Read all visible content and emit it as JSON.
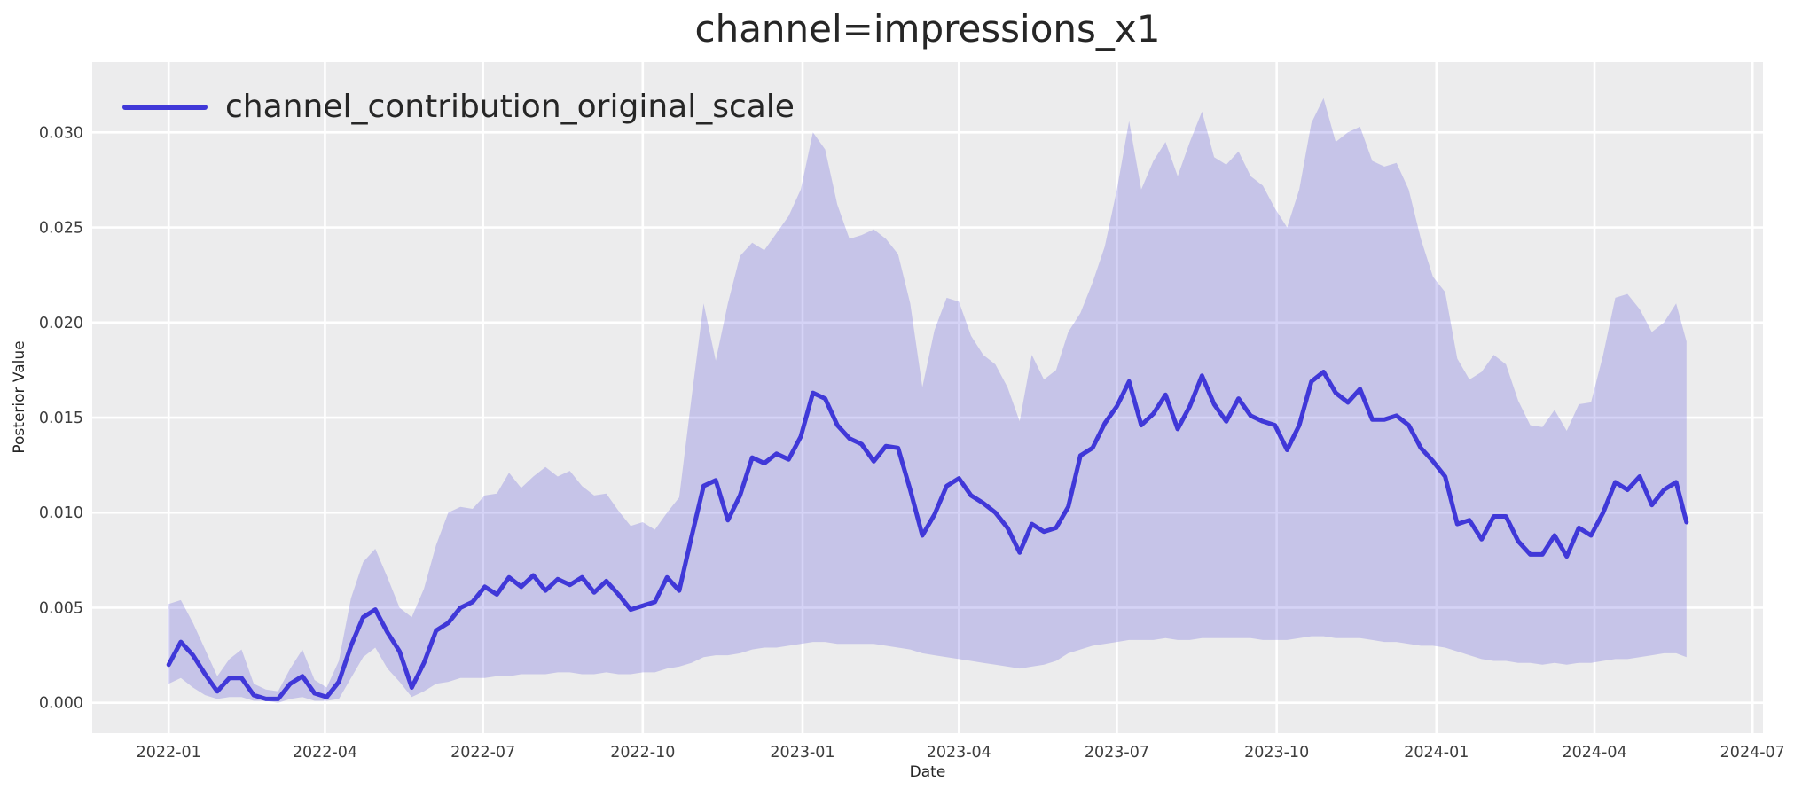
{
  "title": "channel=impressions_x1",
  "legend": {
    "label": "channel_contribution_original_scale"
  },
  "axes": {
    "xlabel": "Date",
    "ylabel": "Posterior Value"
  },
  "colors": {
    "accent_line": "#4038d8",
    "band_fill": "#4038d8",
    "band_opacity": 0.22,
    "plot_bg": "#ececed",
    "grid": "#ffffff",
    "text": "#262626",
    "tick_text": "#3d3d3d",
    "figure_bg": "#ffffff"
  },
  "chart_data": {
    "type": "line",
    "title": "channel=impressions_x1",
    "xlabel": "Date",
    "ylabel": "Posterior Value",
    "grid": true,
    "legend_position": "upper left",
    "x_range": [
      "2021-11-18",
      "2024-07-07"
    ],
    "ylim": [
      -0.0016,
      0.0337
    ],
    "x_ticks": [
      {
        "label": "2022-01",
        "date": "2022-01-01"
      },
      {
        "label": "2022-04",
        "date": "2022-04-01"
      },
      {
        "label": "2022-07",
        "date": "2022-07-01"
      },
      {
        "label": "2022-10",
        "date": "2022-10-01"
      },
      {
        "label": "2023-01",
        "date": "2023-01-01"
      },
      {
        "label": "2023-04",
        "date": "2023-04-01"
      },
      {
        "label": "2023-07",
        "date": "2023-07-01"
      },
      {
        "label": "2023-10",
        "date": "2023-10-01"
      },
      {
        "label": "2024-01",
        "date": "2024-01-01"
      },
      {
        "label": "2024-04",
        "date": "2024-04-01"
      },
      {
        "label": "2024-07",
        "date": "2024-07-01"
      }
    ],
    "y_ticks": [
      {
        "label": "0.000",
        "value": 0.0
      },
      {
        "label": "0.005",
        "value": 0.005
      },
      {
        "label": "0.010",
        "value": 0.01
      },
      {
        "label": "0.015",
        "value": 0.015
      },
      {
        "label": "0.020",
        "value": 0.02
      },
      {
        "label": "0.025",
        "value": 0.025
      },
      {
        "label": "0.030",
        "value": 0.03
      }
    ],
    "series": [
      {
        "name": "channel_contribution_original_scale",
        "color": "#4038d8",
        "dates": [
          "2022-01-01",
          "2022-01-08",
          "2022-01-15",
          "2022-01-22",
          "2022-01-29",
          "2022-02-05",
          "2022-02-12",
          "2022-02-19",
          "2022-02-26",
          "2022-03-05",
          "2022-03-12",
          "2022-03-19",
          "2022-03-26",
          "2022-04-02",
          "2022-04-09",
          "2022-04-16",
          "2022-04-23",
          "2022-04-30",
          "2022-05-07",
          "2022-05-14",
          "2022-05-21",
          "2022-05-28",
          "2022-06-04",
          "2022-06-11",
          "2022-06-18",
          "2022-06-25",
          "2022-07-02",
          "2022-07-09",
          "2022-07-16",
          "2022-07-23",
          "2022-07-30",
          "2022-08-06",
          "2022-08-13",
          "2022-08-20",
          "2022-08-27",
          "2022-09-03",
          "2022-09-10",
          "2022-09-17",
          "2022-09-24",
          "2022-10-01",
          "2022-10-08",
          "2022-10-15",
          "2022-10-22",
          "2022-10-29",
          "2022-11-05",
          "2022-11-12",
          "2022-11-19",
          "2022-11-26",
          "2022-12-03",
          "2022-12-10",
          "2022-12-17",
          "2022-12-24",
          "2022-12-31",
          "2023-01-07",
          "2023-01-14",
          "2023-01-21",
          "2023-01-28",
          "2023-02-04",
          "2023-02-11",
          "2023-02-18",
          "2023-02-25",
          "2023-03-04",
          "2023-03-11",
          "2023-03-18",
          "2023-03-25",
          "2023-04-01",
          "2023-04-08",
          "2023-04-15",
          "2023-04-22",
          "2023-04-29",
          "2023-05-06",
          "2023-05-13",
          "2023-05-20",
          "2023-05-27",
          "2023-06-03",
          "2023-06-10",
          "2023-06-17",
          "2023-06-24",
          "2023-07-01",
          "2023-07-08",
          "2023-07-15",
          "2023-07-22",
          "2023-07-29",
          "2023-08-05",
          "2023-08-12",
          "2023-08-19",
          "2023-08-26",
          "2023-09-02",
          "2023-09-09",
          "2023-09-16",
          "2023-09-23",
          "2023-09-30",
          "2023-10-07",
          "2023-10-14",
          "2023-10-21",
          "2023-10-28",
          "2023-11-04",
          "2023-11-11",
          "2023-11-18",
          "2023-11-25",
          "2023-12-02",
          "2023-12-09",
          "2023-12-16",
          "2023-12-23",
          "2023-12-30",
          "2024-01-06",
          "2024-01-13",
          "2024-01-20",
          "2024-01-27",
          "2024-02-03",
          "2024-02-10",
          "2024-02-17",
          "2024-02-24",
          "2024-03-02",
          "2024-03-09",
          "2024-03-16",
          "2024-03-23",
          "2024-03-30",
          "2024-04-06",
          "2024-04-13",
          "2024-04-20",
          "2024-04-27",
          "2024-05-04",
          "2024-05-11",
          "2024-05-18",
          "2024-05-24"
        ],
        "mean": [
          0.002,
          0.0032,
          0.0025,
          0.0015,
          0.0006,
          0.0013,
          0.0013,
          0.0004,
          0.0002,
          0.0002,
          0.001,
          0.0014,
          0.0005,
          0.0003,
          0.0011,
          0.003,
          0.0045,
          0.0049,
          0.0037,
          0.0027,
          0.0008,
          0.0021,
          0.0038,
          0.0042,
          0.005,
          0.0053,
          0.0061,
          0.0057,
          0.0066,
          0.0061,
          0.0067,
          0.0059,
          0.0065,
          0.0062,
          0.0066,
          0.0058,
          0.0064,
          0.0057,
          0.0049,
          0.0051,
          0.0053,
          0.0066,
          0.0059,
          0.0087,
          0.0114,
          0.0117,
          0.0096,
          0.0109,
          0.0129,
          0.0126,
          0.0131,
          0.0128,
          0.014,
          0.0163,
          0.016,
          0.0146,
          0.0139,
          0.0136,
          0.0127,
          0.0135,
          0.0134,
          0.0112,
          0.0088,
          0.0099,
          0.0114,
          0.0118,
          0.0109,
          0.0105,
          0.01,
          0.0092,
          0.0079,
          0.0094,
          0.009,
          0.0092,
          0.0103,
          0.013,
          0.0134,
          0.0147,
          0.0156,
          0.0169,
          0.0146,
          0.0152,
          0.0162,
          0.0144,
          0.0156,
          0.0172,
          0.0157,
          0.0148,
          0.016,
          0.0151,
          0.0148,
          0.0146,
          0.0133,
          0.0146,
          0.0169,
          0.0174,
          0.0163,
          0.0158,
          0.0165,
          0.0149,
          0.0149,
          0.0151,
          0.0146,
          0.0134,
          0.0127,
          0.0119,
          0.0094,
          0.0096,
          0.0086,
          0.0098,
          0.0098,
          0.0085,
          0.0078,
          0.0078,
          0.0088,
          0.0077,
          0.0092,
          0.0088,
          0.01,
          0.0116,
          0.0112,
          0.0119,
          0.0104,
          0.0112,
          0.0116,
          0.0095
        ],
        "lower": [
          0.001,
          0.0013,
          0.0008,
          0.0004,
          0.0002,
          0.0003,
          0.0003,
          0.0001,
          0.0001,
          0.0,
          0.0002,
          0.0003,
          0.0001,
          0.0001,
          0.0002,
          0.0013,
          0.0024,
          0.0029,
          0.0018,
          0.0011,
          0.0003,
          0.0006,
          0.001,
          0.0011,
          0.0013,
          0.0013,
          0.0013,
          0.0014,
          0.0014,
          0.0015,
          0.0015,
          0.0015,
          0.0016,
          0.0016,
          0.0015,
          0.0015,
          0.0016,
          0.0015,
          0.0015,
          0.0016,
          0.0016,
          0.0018,
          0.0019,
          0.0021,
          0.0024,
          0.0025,
          0.0025,
          0.0026,
          0.0028,
          0.0029,
          0.0029,
          0.003,
          0.0031,
          0.0032,
          0.0032,
          0.0031,
          0.0031,
          0.0031,
          0.0031,
          0.003,
          0.0029,
          0.0028,
          0.0026,
          0.0025,
          0.0024,
          0.0023,
          0.0022,
          0.0021,
          0.002,
          0.0019,
          0.0018,
          0.0019,
          0.002,
          0.0022,
          0.0026,
          0.0028,
          0.003,
          0.0031,
          0.0032,
          0.0033,
          0.0033,
          0.0033,
          0.0034,
          0.0033,
          0.0033,
          0.0034,
          0.0034,
          0.0034,
          0.0034,
          0.0034,
          0.0033,
          0.0033,
          0.0033,
          0.0034,
          0.0035,
          0.0035,
          0.0034,
          0.0034,
          0.0034,
          0.0033,
          0.0032,
          0.0032,
          0.0031,
          0.003,
          0.003,
          0.0029,
          0.0027,
          0.0025,
          0.0023,
          0.0022,
          0.0022,
          0.0021,
          0.0021,
          0.002,
          0.0021,
          0.002,
          0.0021,
          0.0021,
          0.0022,
          0.0023,
          0.0023,
          0.0024,
          0.0025,
          0.0026,
          0.0026,
          0.0024
        ],
        "upper": [
          0.0052,
          0.0054,
          0.0042,
          0.0028,
          0.0014,
          0.0023,
          0.0028,
          0.001,
          0.0007,
          0.0006,
          0.0018,
          0.0028,
          0.0012,
          0.0008,
          0.0022,
          0.0055,
          0.0074,
          0.0081,
          0.0066,
          0.005,
          0.0045,
          0.006,
          0.0083,
          0.01,
          0.0103,
          0.0102,
          0.0109,
          0.011,
          0.0121,
          0.0113,
          0.0119,
          0.0124,
          0.0119,
          0.0122,
          0.0114,
          0.0109,
          0.011,
          0.0101,
          0.0093,
          0.0095,
          0.0091,
          0.01,
          0.0108,
          0.016,
          0.021,
          0.018,
          0.021,
          0.0235,
          0.0242,
          0.0238,
          0.0247,
          0.0256,
          0.027,
          0.03,
          0.0291,
          0.0262,
          0.0244,
          0.0246,
          0.0249,
          0.0244,
          0.0236,
          0.021,
          0.0166,
          0.0196,
          0.0213,
          0.0211,
          0.0193,
          0.0183,
          0.0178,
          0.0166,
          0.0148,
          0.0183,
          0.017,
          0.0175,
          0.0195,
          0.0205,
          0.0221,
          0.024,
          0.027,
          0.0306,
          0.027,
          0.0285,
          0.0295,
          0.0277,
          0.0295,
          0.0311,
          0.0287,
          0.0283,
          0.029,
          0.0277,
          0.0272,
          0.026,
          0.025,
          0.027,
          0.0305,
          0.0318,
          0.0295,
          0.03,
          0.0303,
          0.0285,
          0.0282,
          0.0284,
          0.027,
          0.0244,
          0.0224,
          0.0216,
          0.0181,
          0.017,
          0.0174,
          0.0183,
          0.0178,
          0.0159,
          0.0146,
          0.0145,
          0.0154,
          0.0143,
          0.0157,
          0.0158,
          0.0183,
          0.0213,
          0.0215,
          0.0207,
          0.0195,
          0.02,
          0.021,
          0.019
        ]
      }
    ]
  }
}
